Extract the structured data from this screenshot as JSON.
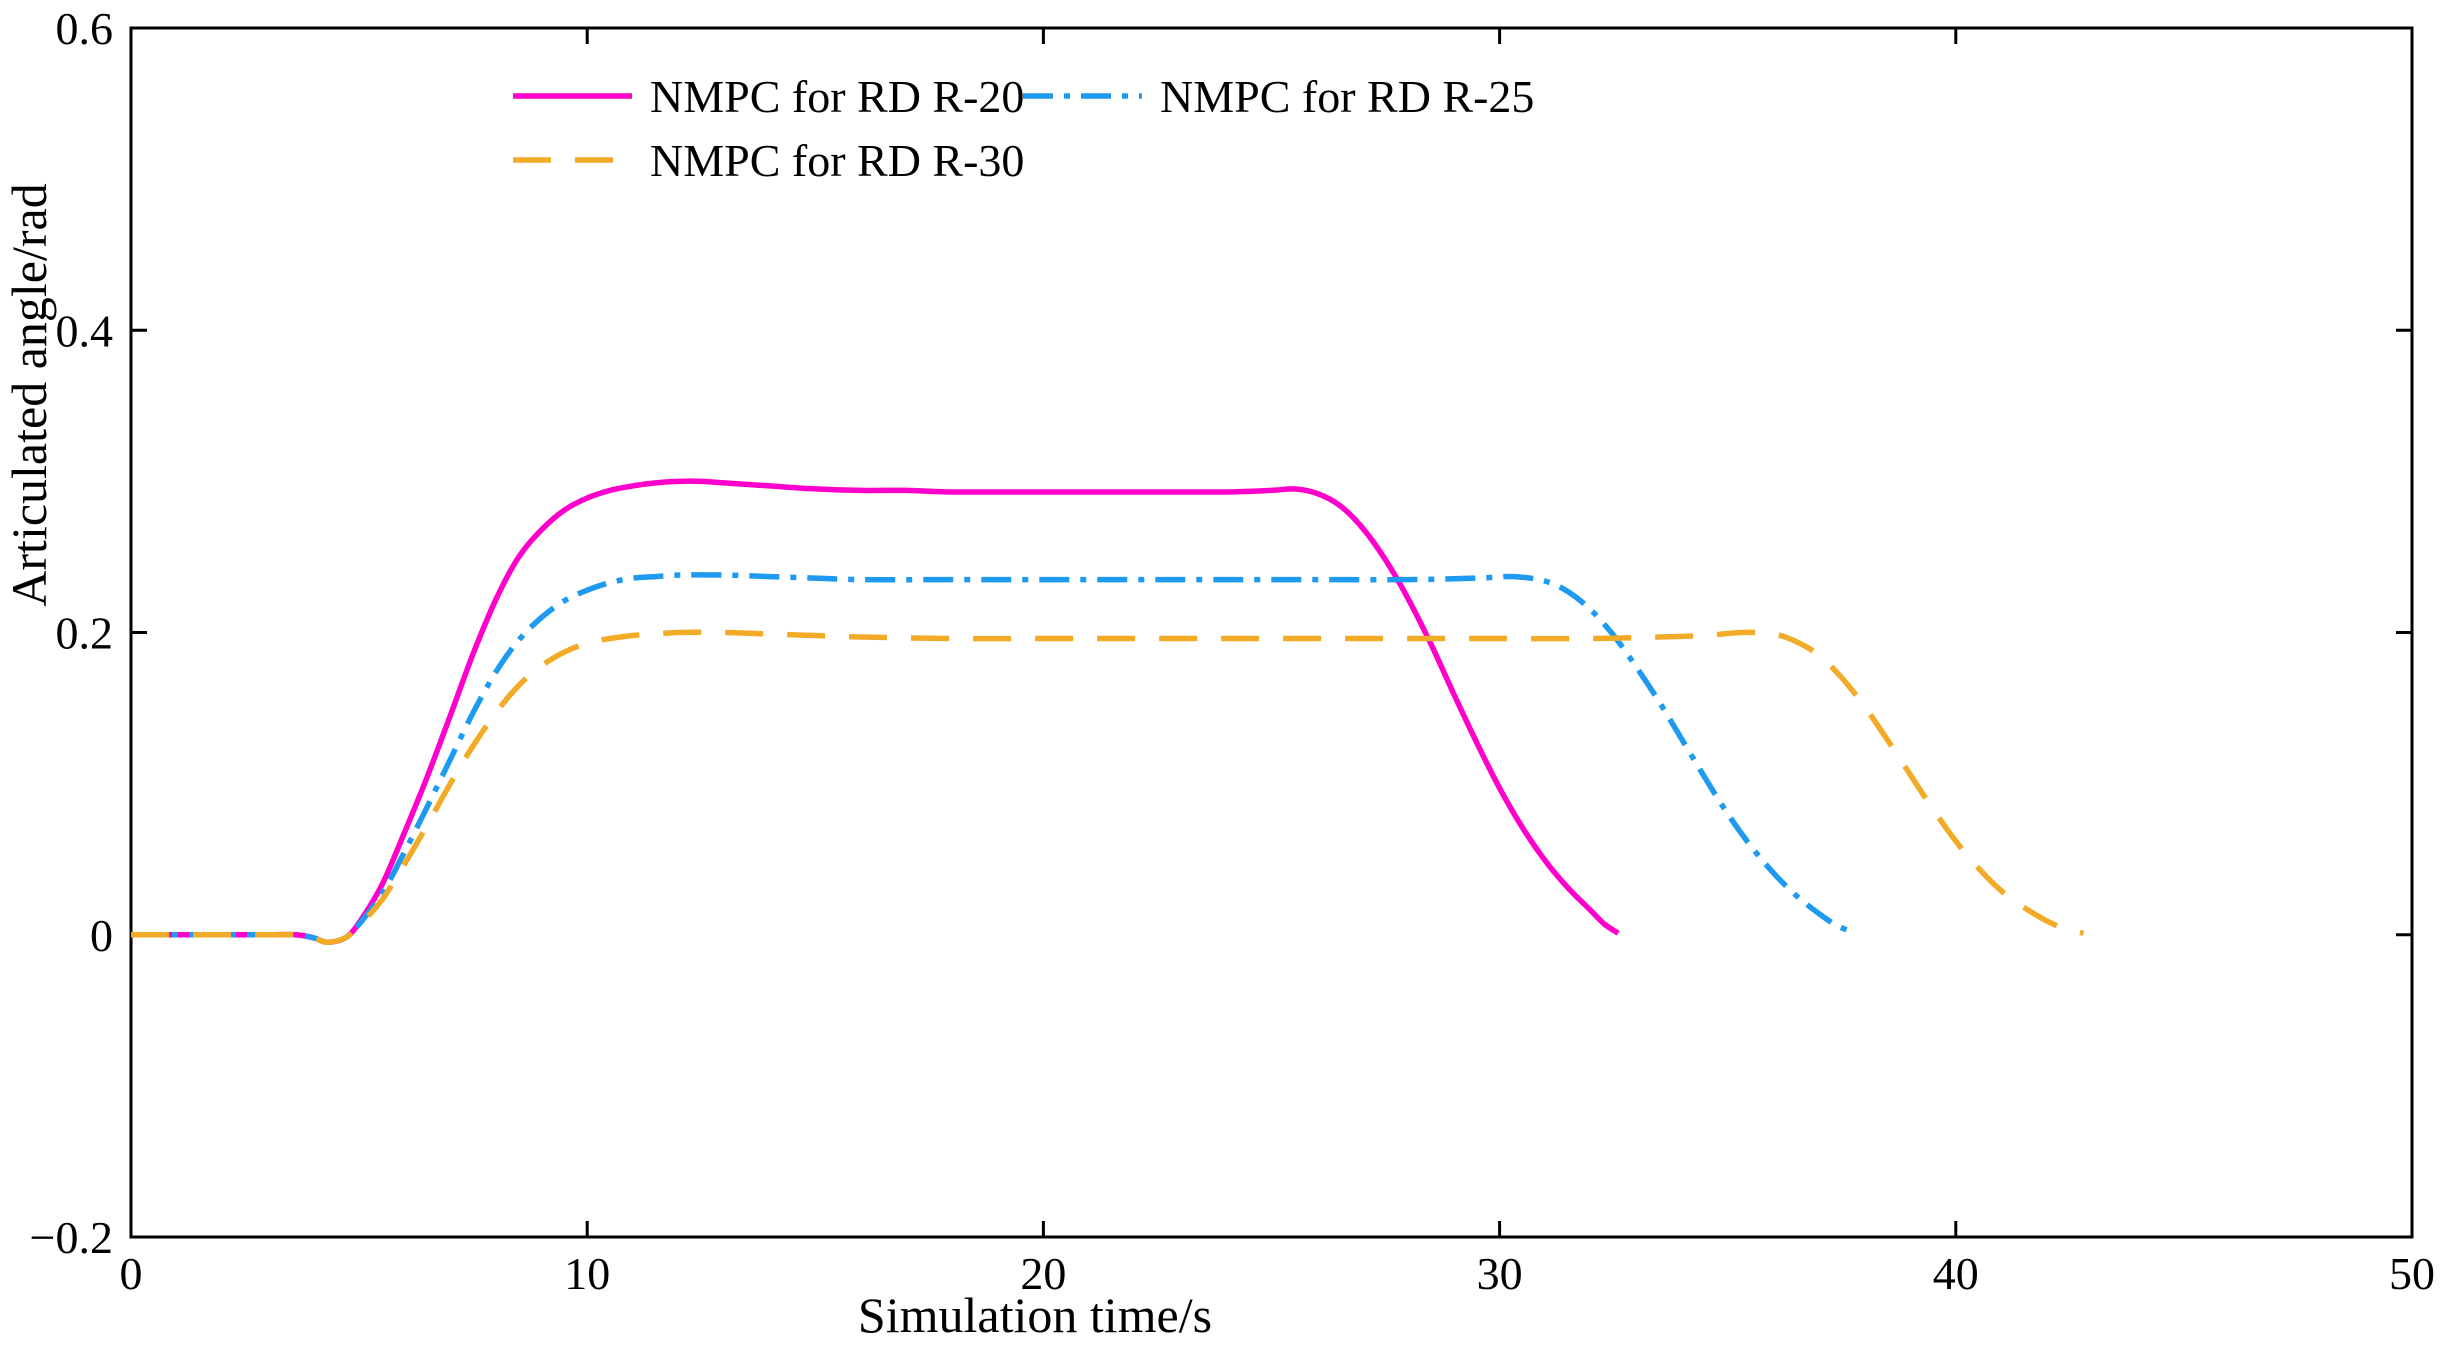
{
  "figure": {
    "background": "#ffffff",
    "axes_color": "#000000"
  },
  "chart_data": {
    "type": "line",
    "title": "",
    "xlabel": "Simulation time/s",
    "ylabel": "Articulated angle/rad",
    "xlim": [
      0,
      50
    ],
    "ylim": [
      -0.2,
      0.6
    ],
    "xticks": [
      0,
      10,
      20,
      30,
      40,
      50
    ],
    "xtick_labels": [
      "0",
      "10",
      "20",
      "30",
      "40",
      "50"
    ],
    "yticks": [
      -0.2,
      0,
      0.2,
      0.4,
      0.6
    ],
    "ytick_labels": [
      "−0.2",
      "0",
      "0.2",
      "0.4",
      "0.6"
    ],
    "grid": false,
    "legend": {
      "position": "top-inside",
      "columns": 2,
      "box": false
    },
    "series": [
      {
        "name": "NMPC for RD R-20",
        "color": "#FF00CC",
        "line_style": "solid",
        "line_width": 5.5,
        "points": [
          [
            0,
            0
          ],
          [
            1,
            0
          ],
          [
            2,
            0
          ],
          [
            3,
            0
          ],
          [
            3.6,
            0
          ],
          [
            4,
            -0.002
          ],
          [
            4.3,
            -0.005
          ],
          [
            4.7,
            -0.002
          ],
          [
            5,
            0.008
          ],
          [
            5.5,
            0.033
          ],
          [
            6,
            0.068
          ],
          [
            6.5,
            0.105
          ],
          [
            7,
            0.145
          ],
          [
            7.5,
            0.186
          ],
          [
            8,
            0.222
          ],
          [
            8.5,
            0.25
          ],
          [
            9,
            0.268
          ],
          [
            9.5,
            0.281
          ],
          [
            10,
            0.289
          ],
          [
            10.5,
            0.294
          ],
          [
            11,
            0.297
          ],
          [
            11.5,
            0.299
          ],
          [
            12,
            0.3
          ],
          [
            12.5,
            0.3
          ],
          [
            13,
            0.299
          ],
          [
            14,
            0.297
          ],
          [
            15,
            0.295
          ],
          [
            16,
            0.294
          ],
          [
            17,
            0.294
          ],
          [
            18,
            0.293
          ],
          [
            20,
            0.293
          ],
          [
            22,
            0.293
          ],
          [
            24,
            0.293
          ],
          [
            25,
            0.294
          ],
          [
            25.5,
            0.295
          ],
          [
            26,
            0.292
          ],
          [
            26.5,
            0.284
          ],
          [
            27,
            0.269
          ],
          [
            27.5,
            0.248
          ],
          [
            28,
            0.222
          ],
          [
            28.5,
            0.192
          ],
          [
            29,
            0.159
          ],
          [
            29.5,
            0.127
          ],
          [
            30,
            0.097
          ],
          [
            30.5,
            0.071
          ],
          [
            31,
            0.049
          ],
          [
            31.5,
            0.031
          ],
          [
            32,
            0.016
          ],
          [
            32.3,
            0.007
          ],
          [
            32.6,
            0.001
          ]
        ]
      },
      {
        "name": "NMPC for RD R-25",
        "color": "#1E9BF0",
        "line_style": "dash-dot",
        "line_width": 5.5,
        "points": [
          [
            0,
            0
          ],
          [
            1,
            0
          ],
          [
            2,
            0
          ],
          [
            3,
            0
          ],
          [
            3.6,
            0
          ],
          [
            4,
            -0.002
          ],
          [
            4.3,
            -0.005
          ],
          [
            4.7,
            -0.002
          ],
          [
            5,
            0.007
          ],
          [
            5.5,
            0.027
          ],
          [
            6,
            0.055
          ],
          [
            6.5,
            0.085
          ],
          [
            7,
            0.116
          ],
          [
            7.5,
            0.147
          ],
          [
            8,
            0.174
          ],
          [
            8.5,
            0.195
          ],
          [
            9,
            0.21
          ],
          [
            9.5,
            0.221
          ],
          [
            10,
            0.228
          ],
          [
            10.5,
            0.233
          ],
          [
            11,
            0.236
          ],
          [
            11.5,
            0.237
          ],
          [
            12,
            0.238
          ],
          [
            13,
            0.238
          ],
          [
            14,
            0.237
          ],
          [
            15,
            0.236
          ],
          [
            16,
            0.235
          ],
          [
            18,
            0.235
          ],
          [
            20,
            0.235
          ],
          [
            22,
            0.235
          ],
          [
            24,
            0.235
          ],
          [
            26,
            0.235
          ],
          [
            28,
            0.235
          ],
          [
            29.5,
            0.236
          ],
          [
            30.3,
            0.237
          ],
          [
            31,
            0.234
          ],
          [
            31.5,
            0.227
          ],
          [
            32,
            0.215
          ],
          [
            32.5,
            0.198
          ],
          [
            33,
            0.177
          ],
          [
            33.5,
            0.154
          ],
          [
            34,
            0.129
          ],
          [
            34.5,
            0.104
          ],
          [
            35,
            0.08
          ],
          [
            35.5,
            0.059
          ],
          [
            36,
            0.041
          ],
          [
            36.5,
            0.026
          ],
          [
            37,
            0.014
          ],
          [
            37.4,
            0.006
          ],
          [
            37.8,
            0.001
          ]
        ]
      },
      {
        "name": "NMPC for RD R-30",
        "color": "#F2AB27",
        "line_style": "dashed",
        "line_width": 5.5,
        "points": [
          [
            0,
            0
          ],
          [
            1,
            0
          ],
          [
            2,
            0
          ],
          [
            3,
            0
          ],
          [
            3.6,
            0
          ],
          [
            4,
            -0.002
          ],
          [
            4.3,
            -0.005
          ],
          [
            4.7,
            -0.002
          ],
          [
            5,
            0.006
          ],
          [
            5.5,
            0.023
          ],
          [
            6,
            0.047
          ],
          [
            6.5,
            0.073
          ],
          [
            7,
            0.1
          ],
          [
            7.5,
            0.125
          ],
          [
            8,
            0.147
          ],
          [
            8.5,
            0.165
          ],
          [
            9,
            0.178
          ],
          [
            9.5,
            0.187
          ],
          [
            10,
            0.193
          ],
          [
            10.5,
            0.196
          ],
          [
            11,
            0.198
          ],
          [
            11.5,
            0.199
          ],
          [
            12,
            0.2
          ],
          [
            13,
            0.2
          ],
          [
            14,
            0.199
          ],
          [
            15,
            0.198
          ],
          [
            16,
            0.197
          ],
          [
            18,
            0.196
          ],
          [
            20,
            0.196
          ],
          [
            22,
            0.196
          ],
          [
            24,
            0.196
          ],
          [
            26,
            0.196
          ],
          [
            28,
            0.196
          ],
          [
            30,
            0.196
          ],
          [
            32,
            0.196
          ],
          [
            33.5,
            0.197
          ],
          [
            34.5,
            0.198
          ],
          [
            35.3,
            0.2
          ],
          [
            36,
            0.199
          ],
          [
            36.5,
            0.194
          ],
          [
            37,
            0.185
          ],
          [
            37.5,
            0.17
          ],
          [
            38,
            0.151
          ],
          [
            38.5,
            0.129
          ],
          [
            39,
            0.106
          ],
          [
            39.5,
            0.083
          ],
          [
            40,
            0.062
          ],
          [
            40.5,
            0.044
          ],
          [
            41,
            0.029
          ],
          [
            41.5,
            0.018
          ],
          [
            42,
            0.009
          ],
          [
            42.4,
            0.004
          ],
          [
            42.8,
            0.001
          ]
        ]
      }
    ]
  }
}
